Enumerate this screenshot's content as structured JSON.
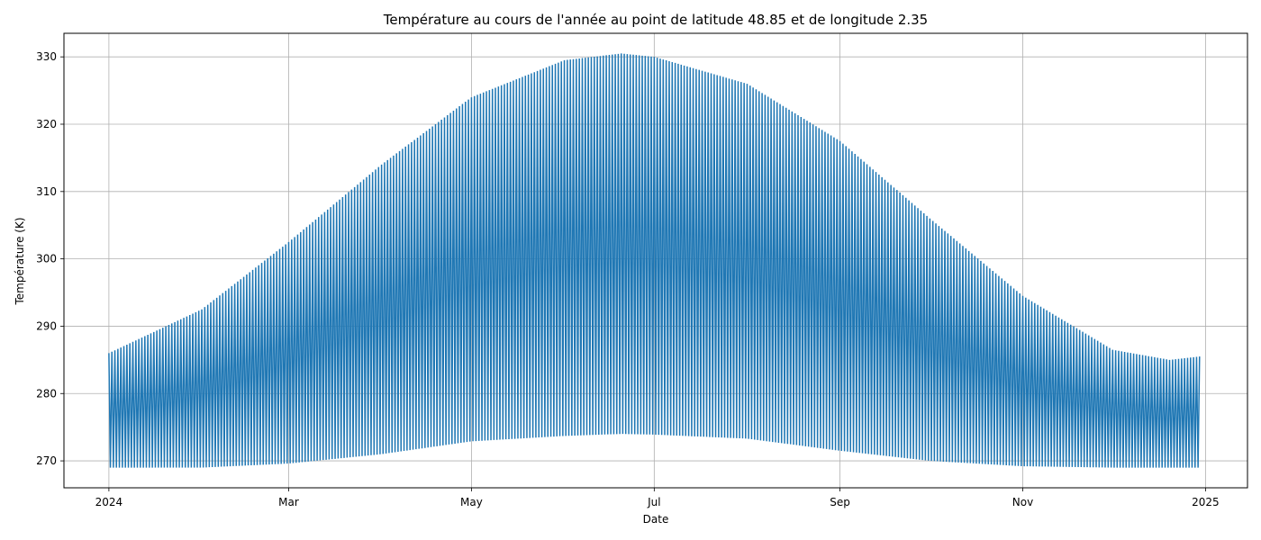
{
  "chart_data": {
    "type": "line",
    "title": "Température au cours de l'année au point de latitude 48.85 et de longitude 2.35",
    "xlabel": "Date",
    "ylabel": "Température (K)",
    "x_tick_labels": [
      "2024",
      "Mar",
      "May",
      "Jul",
      "Sep",
      "Nov",
      "2025"
    ],
    "x_tick_dates": [
      "2024-01-01",
      "2024-03-01",
      "2024-05-01",
      "2024-07-01",
      "2024-09-01",
      "2024-11-01",
      "2025-01-01"
    ],
    "xlim": [
      "2023-12-17",
      "2025-01-15"
    ],
    "y_ticks": [
      270,
      280,
      290,
      300,
      310,
      320,
      330
    ],
    "ylim": [
      266,
      333.5
    ],
    "grid": true,
    "series": [
      {
        "color": "#1f77b4",
        "start_date": "2024-01-01",
        "end_date": "2024-12-30",
        "points_per_day": 2,
        "description": "Daily oscillation between a nightly minimum and a midday maximum",
        "envelope_max": [
          {
            "date": "2024-01-01",
            "value": 286.0
          },
          {
            "date": "2024-02-01",
            "value": 292.5
          },
          {
            "date": "2024-03-01",
            "value": 302.5
          },
          {
            "date": "2024-04-01",
            "value": 314.0
          },
          {
            "date": "2024-05-01",
            "value": 324.0
          },
          {
            "date": "2024-06-01",
            "value": 329.5
          },
          {
            "date": "2024-06-20",
            "value": 330.5
          },
          {
            "date": "2024-07-01",
            "value": 330.0
          },
          {
            "date": "2024-08-01",
            "value": 326.0
          },
          {
            "date": "2024-09-01",
            "value": 317.5
          },
          {
            "date": "2024-10-01",
            "value": 306.0
          },
          {
            "date": "2024-11-01",
            "value": 294.5
          },
          {
            "date": "2024-12-01",
            "value": 286.5
          },
          {
            "date": "2024-12-20",
            "value": 285.0
          },
          {
            "date": "2024-12-30",
            "value": 285.5
          }
        ],
        "envelope_min": [
          {
            "date": "2024-01-01",
            "value": 269.0
          },
          {
            "date": "2024-02-01",
            "value": 269.0
          },
          {
            "date": "2024-03-01",
            "value": 269.6
          },
          {
            "date": "2024-04-01",
            "value": 271.0
          },
          {
            "date": "2024-05-01",
            "value": 272.9
          },
          {
            "date": "2024-06-01",
            "value": 273.7
          },
          {
            "date": "2024-06-20",
            "value": 274.0
          },
          {
            "date": "2024-07-01",
            "value": 273.9
          },
          {
            "date": "2024-08-01",
            "value": 273.3
          },
          {
            "date": "2024-09-01",
            "value": 271.5
          },
          {
            "date": "2024-10-01",
            "value": 270.0
          },
          {
            "date": "2024-11-01",
            "value": 269.2
          },
          {
            "date": "2024-12-01",
            "value": 269.0
          },
          {
            "date": "2024-12-30",
            "value": 269.0
          }
        ]
      }
    ]
  }
}
